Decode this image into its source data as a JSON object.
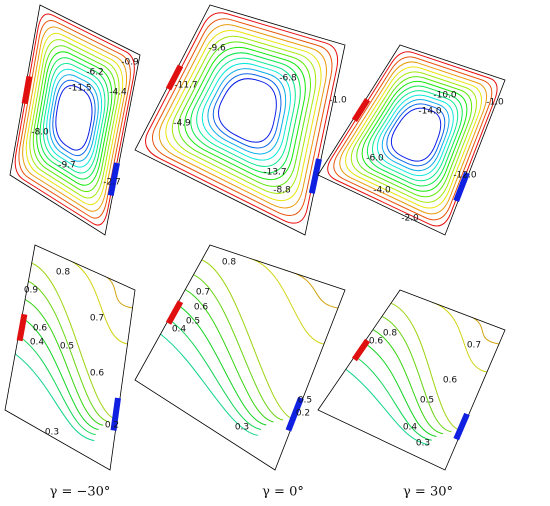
{
  "panels": [
    {
      "labels": [
        "-0.9",
        "-6.2",
        "-4.4",
        "-11.5",
        "-8.0",
        "-9.7",
        "-2.7"
      ]
    },
    {
      "labels": [
        "-9.6",
        "-11.7",
        "-6.8",
        "-1.0",
        "-4.9",
        "-13.7",
        "-8.8"
      ]
    },
    {
      "labels": [
        "-10.0",
        "-14.0",
        "-1.0",
        "-6.0",
        "-12.0",
        "-4.0",
        "-2.0"
      ]
    },
    {
      "labels": [
        "0.8",
        "0.9",
        "0.6",
        "0.7",
        "0.4",
        "0.5",
        "0.6",
        "0.2",
        "0.3"
      ]
    },
    {
      "labels": [
        "0.8",
        "0.7",
        "0.6",
        "0.5",
        "0.4",
        "0.5",
        "0.2",
        "0.3"
      ]
    },
    {
      "labels": [
        "0.8",
        "0.6",
        "0.7",
        "0.6",
        "0.5",
        "0.4",
        "0.3"
      ]
    }
  ],
  "captions": [
    "γ = −30°",
    "γ = 0°",
    "γ = 30°"
  ]
}
